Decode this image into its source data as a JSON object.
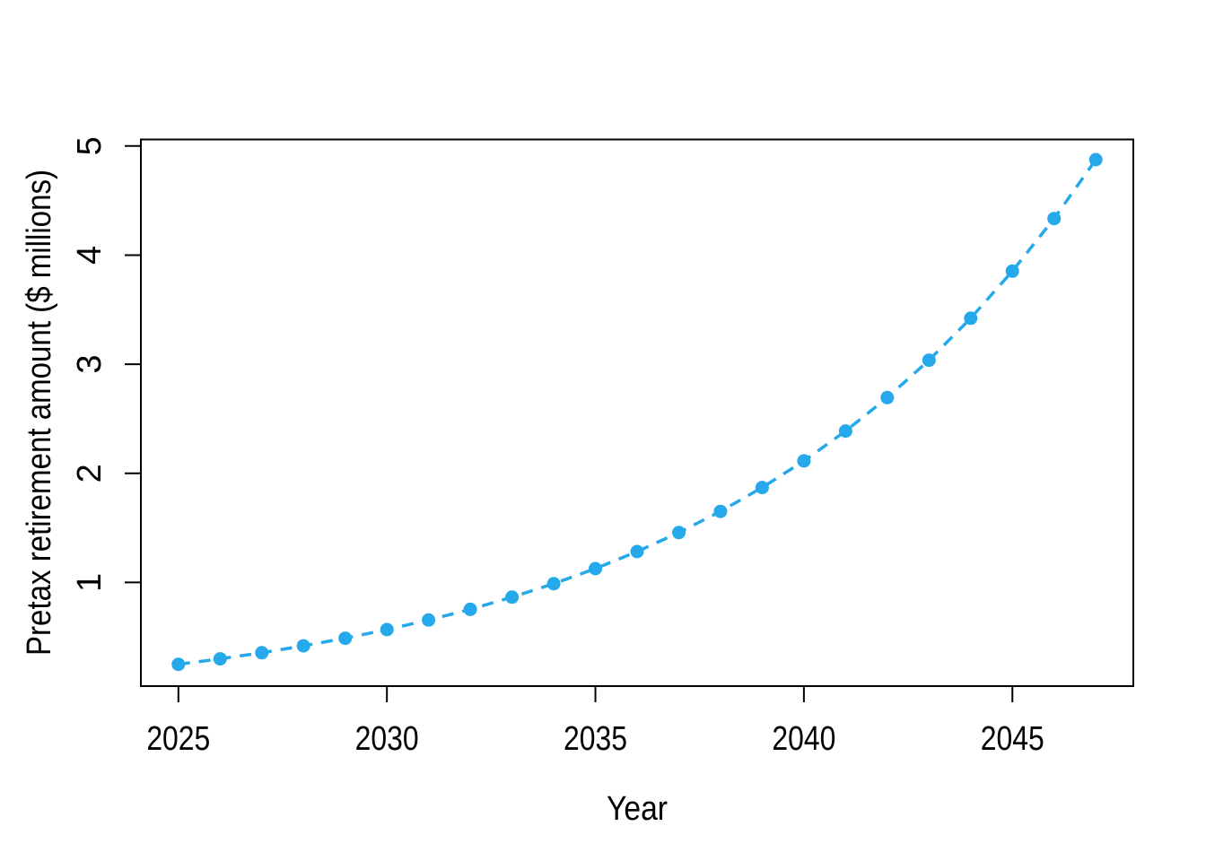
{
  "chart_data": {
    "type": "scatter",
    "style": "points-with-dashed-line",
    "title": "",
    "xlabel": "Year",
    "ylabel": "Pretax retirement amount ($ millions)",
    "x": [
      2025,
      2026,
      2027,
      2028,
      2029,
      2030,
      2031,
      2032,
      2033,
      2034,
      2035,
      2036,
      2037,
      2038,
      2039,
      2040,
      2041,
      2042,
      2043,
      2044,
      2045,
      2046,
      2047
    ],
    "series": [
      {
        "name": "Pretax retirement amount ($ millions)",
        "values": [
          0.25,
          0.3,
          0.356,
          0.419,
          0.489,
          0.568,
          0.656,
          0.754,
          0.865,
          0.989,
          1.127,
          1.283,
          1.457,
          1.651,
          1.87,
          2.114,
          2.388,
          2.694,
          3.037,
          3.422,
          3.853,
          4.335,
          4.875
        ]
      }
    ],
    "xticks": [
      2025,
      2030,
      2035,
      2040,
      2045
    ],
    "yticks": [
      1,
      2,
      3,
      4,
      5
    ],
    "xlim": [
      2024.1,
      2047.9
    ],
    "ylim": [
      0.05,
      5.06
    ],
    "grid": false,
    "legend_position": "none",
    "point_color": "#25A9EA",
    "line_color": "#25A9EA",
    "axis_color": "#000000",
    "background_color": "#FFFFFF"
  }
}
